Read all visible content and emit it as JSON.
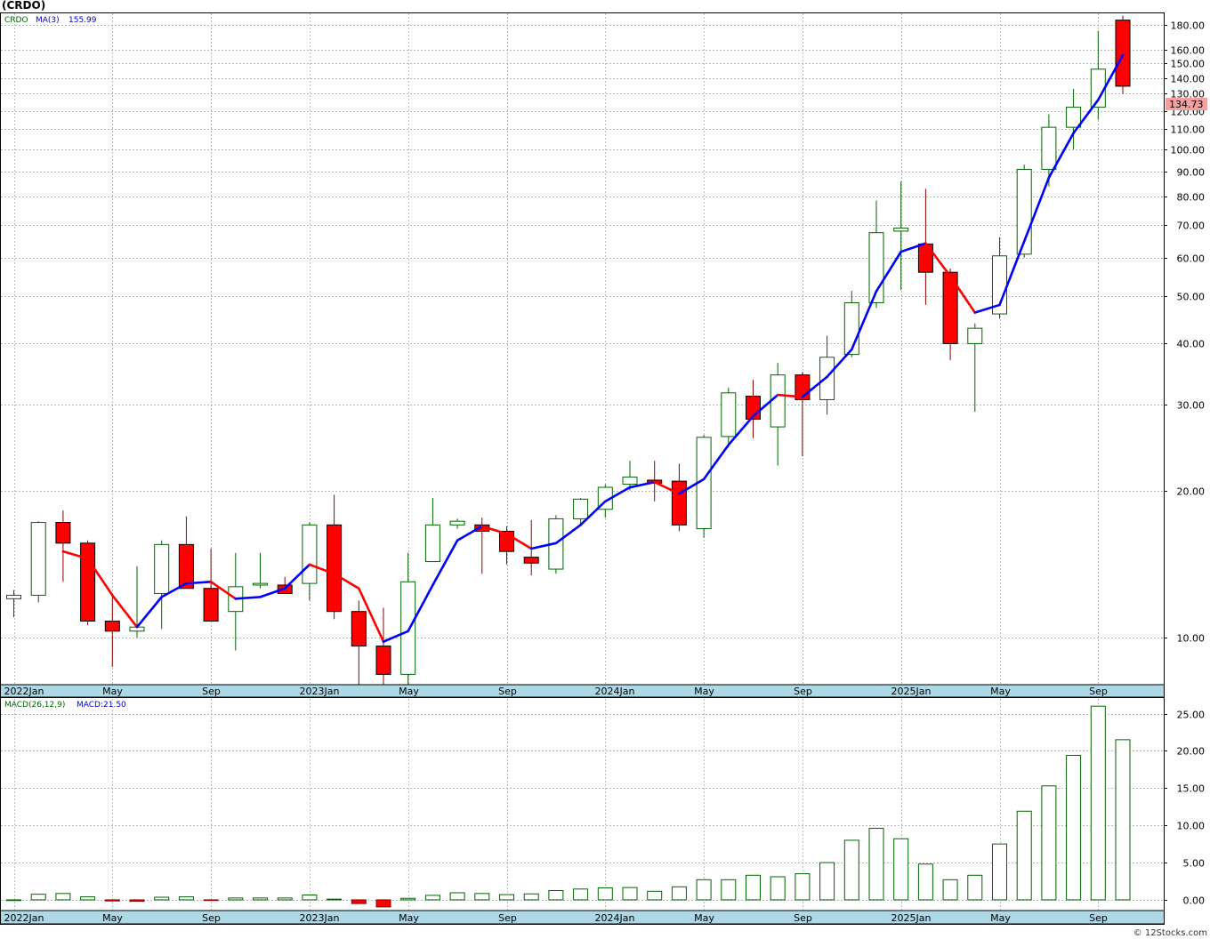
{
  "header": {
    "title": "(CRDO)"
  },
  "price_panel": {
    "legend_symbol": "CRDO",
    "legend_ma": "MA(3)",
    "legend_ma_value": "155.99",
    "last_price_label": "134.73"
  },
  "macd_panel": {
    "legend_name": "MACD(26,12,9)",
    "legend_value": "MACD:21.50"
  },
  "watermark": "© 12Stocks.com",
  "colors": {
    "up_candle_border": "#006400",
    "down_candle_fill": "#ff0000",
    "ma_up": "#0000ff",
    "ma_down": "#ff0000",
    "macd_pos": "#006400",
    "macd_neg": "#ff0000",
    "axis_band": "#add8e6",
    "grid": "#a0a0a0"
  },
  "chart_data": [
    {
      "type": "candlestick",
      "title": "",
      "interval": "monthly",
      "scale": "log",
      "ylim": [
        8,
        190
      ],
      "y_ticks": [
        10,
        20,
        30,
        40,
        50,
        60,
        70,
        80,
        90,
        100,
        110,
        120,
        130,
        140,
        150,
        160,
        180
      ],
      "x_tick_labels": [
        "2022Jan",
        "May",
        "Sep",
        "2023Jan",
        "May",
        "Sep",
        "2024Jan",
        "May",
        "Sep",
        "2025Jan",
        "May",
        "Sep"
      ],
      "months": [
        "2022-01",
        "2022-02",
        "2022-03",
        "2022-04",
        "2022-05",
        "2022-06",
        "2022-07",
        "2022-08",
        "2022-09",
        "2022-10",
        "2022-11",
        "2022-12",
        "2023-01",
        "2023-02",
        "2023-03",
        "2023-04",
        "2023-05",
        "2023-06",
        "2023-07",
        "2023-08",
        "2023-09",
        "2023-10",
        "2023-11",
        "2023-12",
        "2024-01",
        "2024-02",
        "2024-03",
        "2024-04",
        "2024-05",
        "2024-06",
        "2024-07",
        "2024-08",
        "2024-09",
        "2024-10",
        "2024-11",
        "2024-12",
        "2025-01",
        "2025-02",
        "2025-03",
        "2025-04",
        "2025-05",
        "2025-06",
        "2025-07",
        "2025-08",
        "2025-09",
        "2025-10"
      ],
      "open": [
        12.0,
        12.2,
        17.2,
        15.6,
        10.8,
        10.3,
        12.3,
        15.5,
        12.6,
        11.3,
        12.8,
        12.8,
        12.9,
        17.0,
        11.3,
        9.6,
        8.4,
        14.3,
        17.0,
        17.0,
        16.5,
        14.6,
        13.8,
        17.5,
        18.3,
        20.6,
        21.0,
        20.9,
        16.7,
        25.8,
        31.2,
        27.0,
        34.5,
        30.7,
        38.0,
        48.5,
        68.0,
        64.0,
        56.0,
        40.0,
        46.0,
        61.0,
        91.0,
        111.0,
        122.0,
        184.0
      ],
      "high": [
        12.5,
        17.3,
        18.2,
        15.8,
        12.3,
        14.0,
        15.8,
        17.7,
        15.2,
        14.9,
        14.9,
        13.3,
        17.2,
        19.6,
        11.9,
        11.5,
        14.9,
        19.3,
        17.5,
        17.6,
        16.9,
        17.4,
        17.8,
        19.3,
        20.6,
        23.0,
        23.0,
        22.7,
        26.0,
        32.5,
        33.7,
        36.5,
        35.0,
        41.5,
        51.3,
        78.5,
        86.0,
        83.0,
        57.0,
        44.0,
        66.0,
        93.0,
        118.0,
        133.0,
        175.0,
        188.0
      ],
      "low": [
        11.0,
        11.8,
        13.0,
        10.6,
        8.7,
        10.0,
        10.4,
        12.6,
        11.0,
        9.4,
        12.6,
        12.5,
        11.9,
        10.9,
        8.0,
        8.0,
        7.8,
        14.3,
        16.7,
        13.5,
        14.1,
        13.4,
        13.5,
        17.0,
        17.6,
        20.0,
        19.0,
        16.5,
        16.0,
        24.5,
        25.6,
        22.5,
        23.5,
        28.6,
        37.5,
        47.3,
        51.5,
        48.0,
        37.0,
        29.0,
        45.0,
        60.0,
        84.0,
        100.0,
        115.0,
        130.0
      ],
      "close": [
        12.2,
        17.2,
        15.6,
        10.8,
        10.3,
        10.5,
        15.5,
        12.6,
        10.8,
        12.7,
        12.9,
        12.3,
        17.0,
        11.3,
        9.6,
        8.4,
        13.0,
        17.0,
        17.3,
        16.5,
        15.0,
        14.2,
        17.5,
        19.2,
        20.3,
        21.3,
        20.7,
        17.0,
        25.7,
        31.7,
        28.0,
        34.5,
        30.7,
        37.5,
        48.5,
        67.5,
        69.0,
        56.0,
        40.0,
        43.0,
        60.5,
        91.0,
        111.0,
        122.0,
        146.0,
        134.73
      ],
      "ma3": [
        null,
        null,
        15.0,
        14.5,
        12.2,
        10.5,
        12.1,
        12.9,
        13.0,
        12.0,
        12.1,
        12.6,
        14.1,
        13.5,
        12.6,
        9.8,
        10.3,
        12.8,
        15.8,
        16.9,
        16.3,
        15.2,
        15.6,
        17.0,
        19.0,
        20.3,
        20.8,
        19.7,
        21.1,
        24.8,
        28.4,
        31.4,
        31.1,
        34.2,
        38.9,
        51.2,
        61.7,
        64.2,
        55.0,
        46.3,
        48.0,
        64.8,
        87.5,
        108.0,
        126.3,
        155.99
      ]
    },
    {
      "type": "bar",
      "title": "",
      "indicator": "MACD(26,12,9)",
      "ylim": [
        -1.2,
        26.5
      ],
      "y_ticks": [
        0,
        5,
        10,
        15,
        20,
        25
      ],
      "x_tick_labels": [
        "2022Jan",
        "May",
        "Sep",
        "2023Jan",
        "May",
        "Sep",
        "2024Jan",
        "May",
        "Sep",
        "2025Jan",
        "May",
        "Sep"
      ],
      "values": [
        0.0,
        0.75,
        0.85,
        0.4,
        -0.15,
        -0.2,
        0.35,
        0.4,
        -0.05,
        0.25,
        0.25,
        0.25,
        0.65,
        0.1,
        -0.5,
        -0.95,
        0.2,
        0.6,
        0.95,
        0.85,
        0.7,
        0.8,
        1.25,
        1.45,
        1.6,
        1.65,
        1.15,
        1.75,
        2.7,
        2.7,
        3.3,
        3.1,
        3.5,
        5.0,
        8.0,
        9.6,
        8.2,
        4.8,
        2.7,
        3.3,
        7.5,
        11.9,
        15.3,
        19.4,
        26.0,
        21.5
      ]
    }
  ]
}
